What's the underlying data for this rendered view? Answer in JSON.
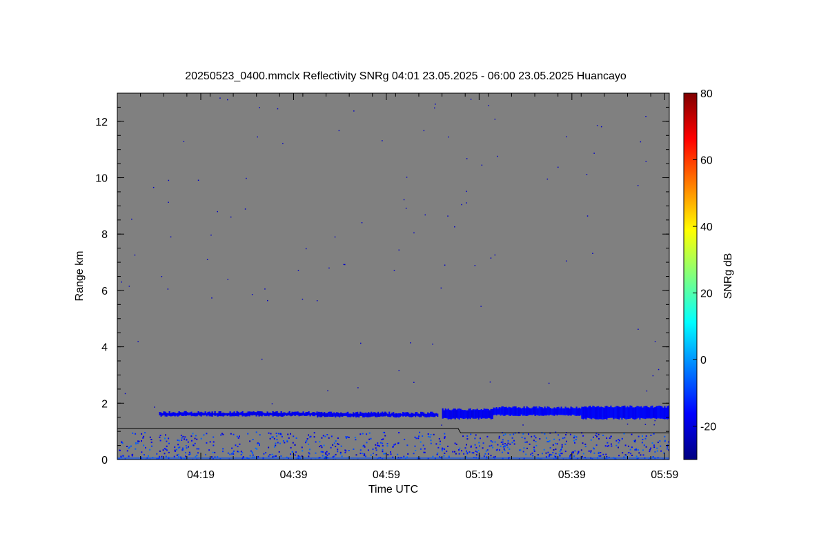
{
  "chart_data": {
    "type": "heatmap",
    "title": "20250523_0400.mmclx Reflectivity SNRg   04:01 23.05.2025 - 06:00 23.05.2025 Huancayo",
    "xlabel": "Time UTC",
    "ylabel": "Range km",
    "x_range_minutes": [
      241,
      360
    ],
    "x_ticks": [
      {
        "minute": 259,
        "label": "04:19"
      },
      {
        "minute": 279,
        "label": "04:39"
      },
      {
        "minute": 299,
        "label": "04:59"
      },
      {
        "minute": 319,
        "label": "05:19"
      },
      {
        "minute": 339,
        "label": "05:39"
      },
      {
        "minute": 359,
        "label": "05:59"
      }
    ],
    "y_range": [
      0,
      13
    ],
    "y_ticks": [
      {
        "value": 0,
        "label": "0"
      },
      {
        "value": 2,
        "label": "2"
      },
      {
        "value": 4,
        "label": "4"
      },
      {
        "value": 6,
        "label": "6"
      },
      {
        "value": 8,
        "label": "8"
      },
      {
        "value": 10,
        "label": "10"
      },
      {
        "value": 12,
        "label": "12"
      }
    ],
    "colorbar": {
      "label": "SNRg dB",
      "range": [
        -30,
        80
      ],
      "ticks": [
        {
          "value": -20,
          "label": "-20"
        },
        {
          "value": 0,
          "label": "0"
        },
        {
          "value": 20,
          "label": "20"
        },
        {
          "value": 40,
          "label": "40"
        },
        {
          "value": 60,
          "label": "60"
        },
        {
          "value": 80,
          "label": "80"
        }
      ],
      "colormap": [
        "#00007f",
        "#0000ff",
        "#007fff",
        "#00ffff",
        "#7fff7f",
        "#ffff00",
        "#ff7f00",
        "#ff0000",
        "#7f0000"
      ]
    },
    "background_color": "#808080",
    "cloud_layers": [
      {
        "x_start": 250,
        "x_end": 284,
        "base_km": 1.55,
        "top_km": 1.68,
        "value_db": -18
      },
      {
        "x_start": 284,
        "x_end": 310,
        "base_km": 1.52,
        "top_km": 1.66,
        "value_db": -18
      },
      {
        "x_start": 311,
        "x_end": 322,
        "base_km": 1.45,
        "top_km": 1.78,
        "value_db": -17
      },
      {
        "x_start": 322,
        "x_end": 341,
        "base_km": 1.57,
        "top_km": 1.85,
        "value_db": -16
      },
      {
        "x_start": 341,
        "x_end": 360,
        "base_km": 1.45,
        "top_km": 1.88,
        "value_db": -16
      }
    ],
    "boundary_line": [
      {
        "x": 241,
        "y": 1.1
      },
      {
        "x": 314.5,
        "y": 1.1
      },
      {
        "x": 315,
        "y": 0.95
      },
      {
        "x": 360,
        "y": 0.95
      }
    ],
    "grid": false,
    "legend": "colorbar-right"
  }
}
